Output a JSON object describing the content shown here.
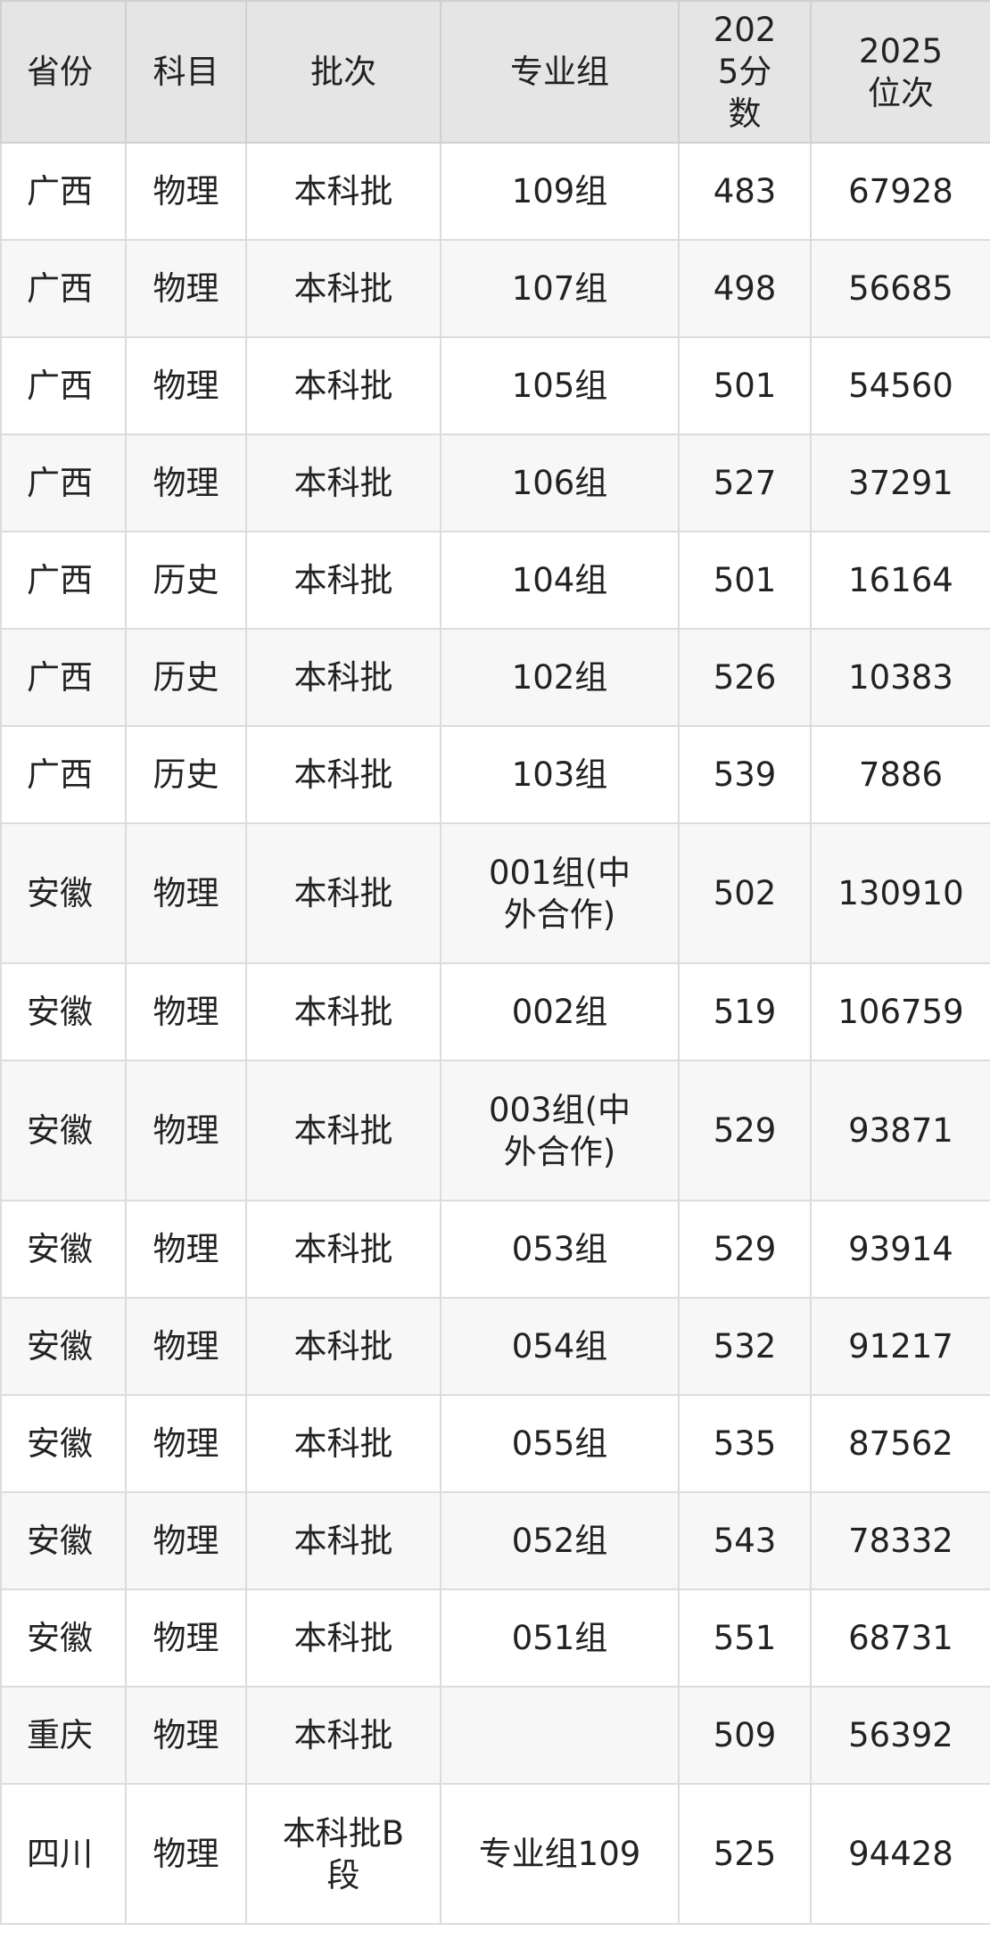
{
  "table": {
    "headers": [
      "省份",
      "科目",
      "批次",
      "专业组",
      "2025分数",
      "2025位次"
    ],
    "rows": [
      [
        "广西",
        "物理",
        "本科批",
        "109组",
        "483",
        "67928"
      ],
      [
        "广西",
        "物理",
        "本科批",
        "107组",
        "498",
        "56685"
      ],
      [
        "广西",
        "物理",
        "本科批",
        "105组",
        "501",
        "54560"
      ],
      [
        "广西",
        "物理",
        "本科批",
        "106组",
        "527",
        "37291"
      ],
      [
        "广西",
        "历史",
        "本科批",
        "104组",
        "501",
        "16164"
      ],
      [
        "广西",
        "历史",
        "本科批",
        "102组",
        "526",
        "10383"
      ],
      [
        "广西",
        "历史",
        "本科批",
        "103组",
        "539",
        "7886"
      ],
      [
        "安徽",
        "物理",
        "本科批",
        "001组(中外合作)",
        "502",
        "130910"
      ],
      [
        "安徽",
        "物理",
        "本科批",
        "002组",
        "519",
        "106759"
      ],
      [
        "安徽",
        "物理",
        "本科批",
        "003组(中外合作)",
        "529",
        "93871"
      ],
      [
        "安徽",
        "物理",
        "本科批",
        "053组",
        "529",
        "93914"
      ],
      [
        "安徽",
        "物理",
        "本科批",
        "054组",
        "532",
        "91217"
      ],
      [
        "安徽",
        "物理",
        "本科批",
        "055组",
        "535",
        "87562"
      ],
      [
        "安徽",
        "物理",
        "本科批",
        "052组",
        "543",
        "78332"
      ],
      [
        "安徽",
        "物理",
        "本科批",
        "051组",
        "551",
        "68731"
      ],
      [
        "重庆",
        "物理",
        "本科批",
        "",
        "509",
        "56392"
      ],
      [
        "四川",
        "物理",
        "本科批B段",
        "专业组109",
        "525",
        "94428"
      ]
    ]
  }
}
